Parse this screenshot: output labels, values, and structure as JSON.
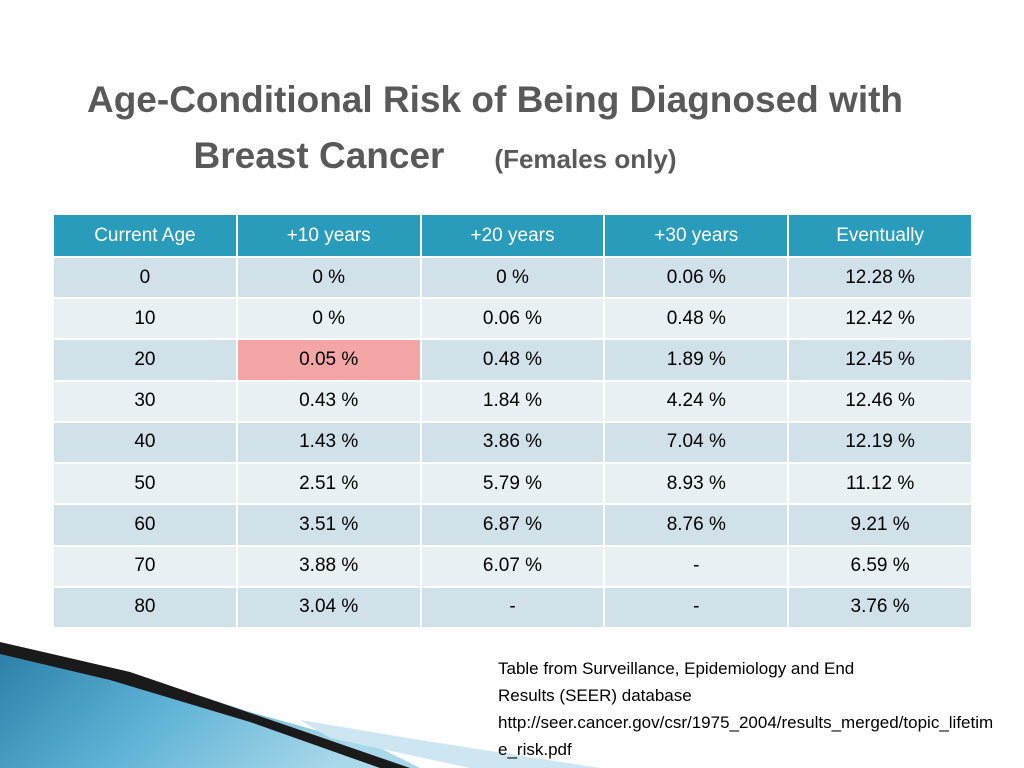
{
  "slide": {
    "title_line1": "Age-Conditional Risk of Being Diagnosed with",
    "title_line2": "Breast Cancer",
    "title_sub": "(Females only)"
  },
  "table": {
    "headers": [
      "Current Age",
      "+10 years",
      "+20 years",
      "+30 years",
      "Eventually"
    ],
    "rows": [
      [
        "0",
        "0 %",
        "0 %",
        "0.06 %",
        "12.28 %"
      ],
      [
        "10",
        "0 %",
        "0.06 %",
        "0.48 %",
        "12.42 %"
      ],
      [
        "20",
        "0.05 %",
        "0.48 %",
        "1.89 %",
        "12.45 %"
      ],
      [
        "30",
        "0.43 %",
        "1.84 %",
        "4.24 %",
        "12.46 %"
      ],
      [
        "40",
        "1.43 %",
        "3.86 %",
        "7.04 %",
        "12.19 %"
      ],
      [
        "50",
        "2.51 %",
        "5.79 %",
        "8.93 %",
        "11.12 %"
      ],
      [
        "60",
        "3.51 %",
        "6.87 %",
        "8.76 %",
        "9.21 %"
      ],
      [
        "70",
        "3.88 %",
        "6.07 %",
        "-",
        "6.59 %"
      ],
      [
        "80",
        "3.04 %",
        "-",
        "-",
        "3.76 %"
      ]
    ]
  },
  "source": {
    "line1": "Table from Surveillance, Epidemiology and End",
    "line2": "Results (SEER) database",
    "line3": "http://seer.cancer.gov/csr/1975_2004/results_merged/topic_lifetime_risk.pdf"
  },
  "colors": {
    "header_bg": "#2a9cbb",
    "row_dark": "#d1e1ea",
    "row_light": "#e9f0f4",
    "highlight": "#f4a6a6",
    "title": "#595959"
  }
}
